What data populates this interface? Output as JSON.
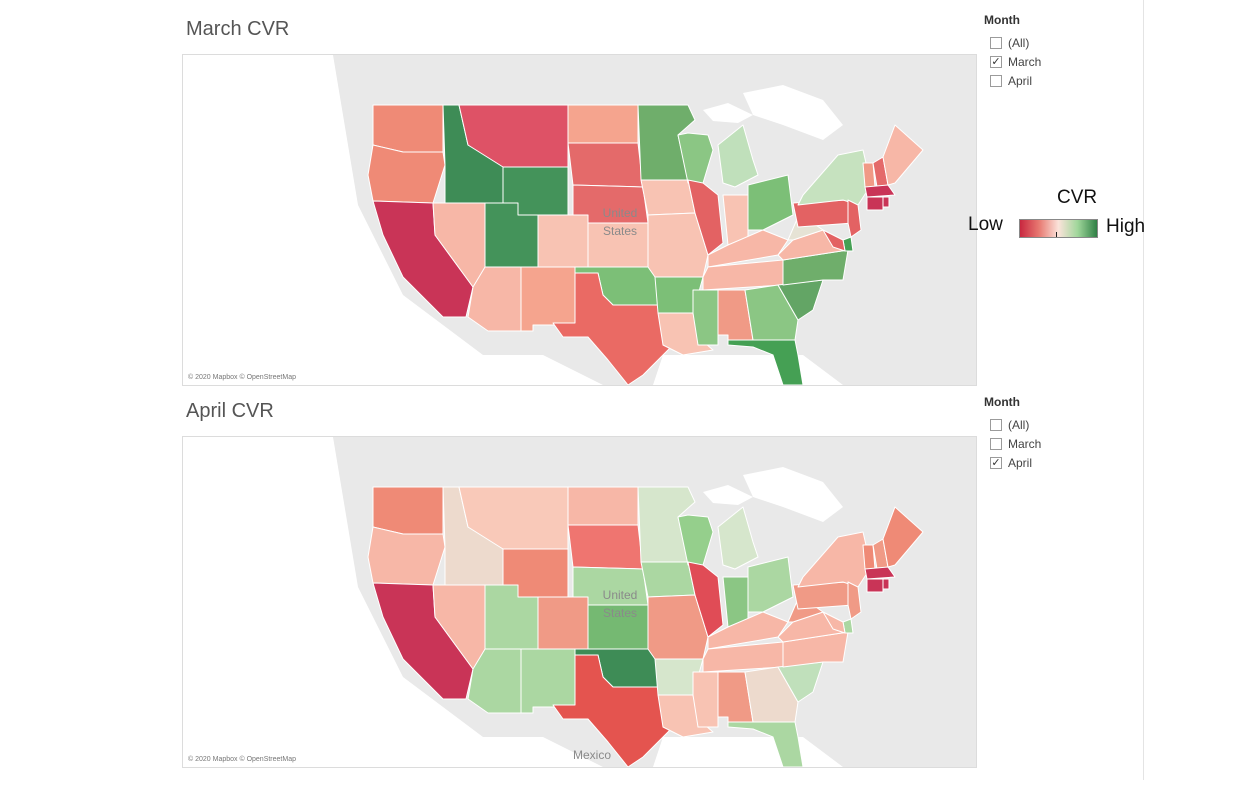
{
  "maps": [
    {
      "title": "March CVR",
      "attribution": "© 2020 Mapbox © OpenStreetMap",
      "country_label": "United States",
      "states": {
        "WA": "#ef8a76",
        "OR": "#ef8a76",
        "CA": "#c93457",
        "ID": "#3e8c56",
        "NV": "#f7b7a7",
        "MT": "#de5266",
        "WY": "#44935a",
        "UT": "#44935a",
        "AZ": "#f7b7a7",
        "CO": "#f8c3b3",
        "NM": "#f5a48e",
        "ND": "#f5a48e",
        "SD": "#e46a6a",
        "NE": "#e46a6a",
        "KS": "#f8c3b3",
        "OK": "#7cbf77",
        "TX": "#ea6a64",
        "MN": "#6fae6b",
        "IA": "#f8c3b3",
        "MO": "#f8c3b3",
        "AR": "#7cbf77",
        "LA": "#f8c3b3",
        "WI": "#8bc684",
        "IL": "#e36263",
        "MI": "#c0e0bb",
        "IN": "#f8c3b3",
        "OH": "#7cbf77",
        "KY": "#f7b7a7",
        "TN": "#f7b7a7",
        "MS": "#8bc684",
        "AL": "#f09a86",
        "GA": "#8bc684",
        "FL": "#45a054",
        "SC": "#63a565",
        "NC": "#6fae6b",
        "VA": "#f7b7a7",
        "WV": "#e6e3d5",
        "PA": "#e36263",
        "NY": "#c6e2bf",
        "VT": "#f09a86",
        "NH": "#e46a6a",
        "ME": "#f7b7a7",
        "MA": "#c93457",
        "CT": "#c93457",
        "RI": "#c93457",
        "NJ": "#e36263",
        "DE": "#45a054",
        "MD": "#e36263"
      },
      "filter": {
        "title": "Month",
        "options": [
          {
            "label": "(All)",
            "checked": false
          },
          {
            "label": "March",
            "checked": true
          },
          {
            "label": "April",
            "checked": false
          }
        ]
      }
    },
    {
      "title": "April CVR",
      "attribution": "© 2020 Mapbox © OpenStreetMap",
      "country_label": "United States",
      "neighbor_label": "Mexico",
      "states": {
        "WA": "#ef8a76",
        "OR": "#f7b7a7",
        "CA": "#c93457",
        "ID": "#eddacd",
        "NV": "#f7b7a7",
        "MT": "#f9c9b9",
        "WY": "#ef8a76",
        "UT": "#abd7a2",
        "AZ": "#abd7a2",
        "CO": "#f09a86",
        "NM": "#abd7a2",
        "ND": "#f7b7a7",
        "SD": "#ef7570",
        "NE": "#abd7a2",
        "KS": "#75b972",
        "OK": "#3e8c56",
        "TX": "#e4544f",
        "MN": "#d6e6cc",
        "IA": "#abd7a2",
        "MO": "#f09a86",
        "AR": "#d6e6cc",
        "LA": "#f8c3b3",
        "WI": "#95cf8c",
        "IL": "#e04c56",
        "MI": "#d6e6cc",
        "IN": "#8bc684",
        "OH": "#abd7a2",
        "KY": "#f7b7a7",
        "TN": "#f7b7a7",
        "MS": "#f8c3b3",
        "AL": "#f09a86",
        "GA": "#eddacd",
        "FL": "#abd7a2",
        "SC": "#c0e0bb",
        "NC": "#f7b7a7",
        "VA": "#f7b7a7",
        "WV": "#f09a86",
        "PA": "#f09a86",
        "NY": "#f7b7a7",
        "VT": "#ef8a76",
        "NH": "#f09a86",
        "ME": "#ef8a76",
        "MA": "#c93457",
        "CT": "#c93457",
        "RI": "#c93457",
        "NJ": "#f09a86",
        "DE": "#abd7a2",
        "MD": "#f7b7a7"
      },
      "filter": {
        "title": "Month",
        "options": [
          {
            "label": "(All)",
            "checked": false
          },
          {
            "label": "March",
            "checked": false
          },
          {
            "label": "April",
            "checked": true
          }
        ]
      }
    }
  ],
  "legend": {
    "title": "CVR",
    "low_label": "Low",
    "high_label": "High",
    "colors": {
      "low": "#c8273f",
      "mid": "#fbe3da",
      "high": "#2f7f45"
    }
  },
  "basemap_colors": {
    "land": "#e9e9e9",
    "water": "#ffffff",
    "border": "#ffffff"
  }
}
